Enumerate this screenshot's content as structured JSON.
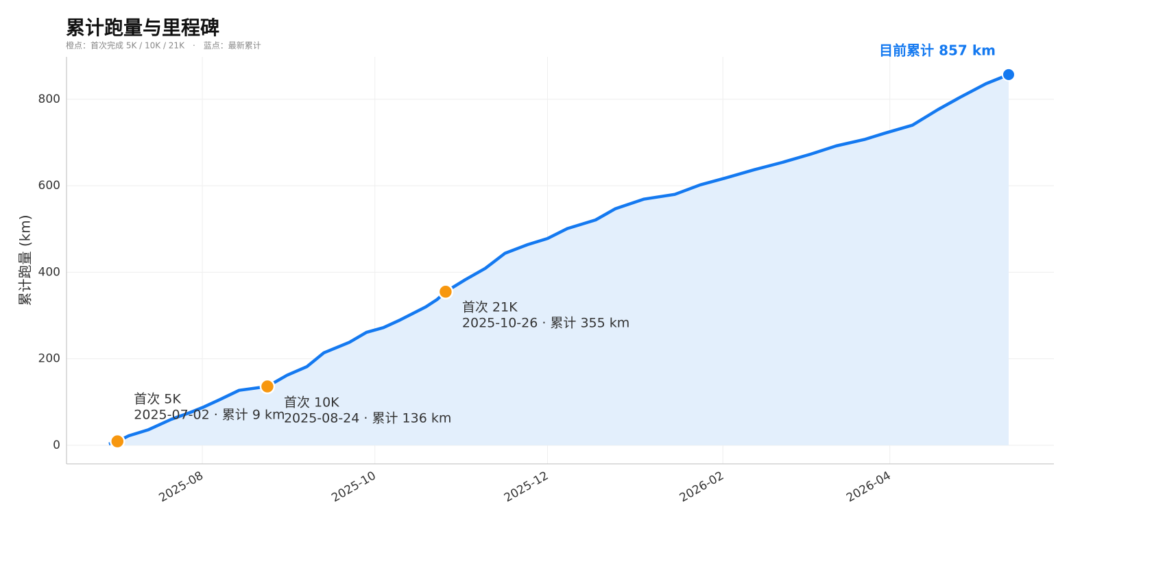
{
  "chart_data": {
    "type": "area-line",
    "title": "累计跑量与里程碑",
    "subtitle": "橙点：首次完成 5K / 10K / 21K　·　蓝点：最新累计",
    "y_label": "累计跑量 (km)",
    "color": "#1479f0",
    "area_color": "#e3effc",
    "milestone_color": "#f7970f",
    "grid": true,
    "x": [
      "2025-06-29",
      "2025-07-02",
      "2025-07-06",
      "2025-07-13",
      "2025-07-21",
      "2025-07-27",
      "2025-08-01",
      "2025-08-07",
      "2025-08-14",
      "2025-08-24",
      "2025-08-31",
      "2025-09-07",
      "2025-09-13",
      "2025-09-22",
      "2025-09-28",
      "2025-10-04",
      "2025-10-10",
      "2025-10-19",
      "2025-10-23",
      "2025-10-26",
      "2025-11-02",
      "2025-11-09",
      "2025-11-16",
      "2025-11-24",
      "2025-12-01",
      "2025-12-08",
      "2025-12-18",
      "2025-12-25",
      "2026-01-04",
      "2026-01-15",
      "2026-01-24",
      "2026-02-02",
      "2026-02-12",
      "2026-02-22",
      "2026-03-04",
      "2026-03-13",
      "2026-03-23",
      "2026-03-30",
      "2026-04-09",
      "2026-04-18",
      "2026-04-26",
      "2026-05-05",
      "2026-05-13"
    ],
    "values": [
      3,
      9,
      22,
      36,
      60,
      74,
      87,
      105,
      127,
      136,
      162,
      182,
      214,
      238,
      261,
      272,
      290,
      320,
      337,
      355,
      383,
      409,
      444,
      464,
      478,
      501,
      521,
      547,
      569,
      580,
      602,
      618,
      637,
      654,
      673,
      692,
      707,
      721,
      740,
      776,
      805,
      836,
      857
    ],
    "milestones": [
      {
        "name": "首次 5K",
        "date": "2025-07-02",
        "value": 9,
        "label": "2025-07-02 · 累计 9 km"
      },
      {
        "name": "首次 10K",
        "date": "2025-08-24",
        "value": 136,
        "label": "2025-08-24 · 累计 136 km"
      },
      {
        "name": "首次 21K",
        "date": "2025-10-26",
        "value": 355,
        "label": "2025-10-26 · 累计 355 km"
      }
    ],
    "current_label": "目前累计 857 km",
    "xlim": [
      "2025-06-14",
      "2026-05-29"
    ],
    "xticks": [
      "2025-08",
      "2025-10",
      "2025-12",
      "2026-02",
      "2026-04"
    ],
    "ylim": [
      -43,
      898
    ],
    "yticks": [
      0,
      200,
      400,
      600,
      800
    ]
  }
}
